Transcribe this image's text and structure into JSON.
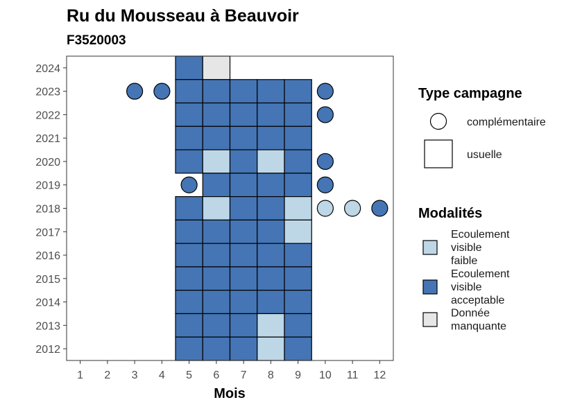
{
  "chart_data": {
    "type": "heatmap",
    "title": "Ru du Mousseau à Beauvoir",
    "subtitle": "F3520003",
    "xlabel": "Mois",
    "ylabel": "",
    "x_ticks": [
      "1",
      "2",
      "3",
      "4",
      "5",
      "6",
      "7",
      "8",
      "9",
      "10",
      "11",
      "12"
    ],
    "y_ticks": [
      "2012",
      "2013",
      "2014",
      "2015",
      "2016",
      "2017",
      "2018",
      "2019",
      "2020",
      "2021",
      "2022",
      "2023",
      "2024"
    ],
    "xlim": [
      0.5,
      12.5
    ],
    "ylim": [
      2011.5,
      2024.5
    ],
    "grid": false,
    "colors": {
      "faible": "#bdd7e7",
      "acceptable": "#4575b4",
      "manquante": "#e6e6e6"
    },
    "legend": {
      "type_title": "Type campagne",
      "type_items": [
        {
          "key": "complementaire",
          "label": "complémentaire",
          "shape": "circle"
        },
        {
          "key": "usuelle",
          "label": "usuelle",
          "shape": "square"
        }
      ],
      "mod_title": "Modalités",
      "mod_items": [
        {
          "key": "faible",
          "lines": [
            "Ecoulement",
            "visible",
            "faible"
          ]
        },
        {
          "key": "acceptable",
          "lines": [
            "Ecoulement",
            "visible",
            "acceptable"
          ]
        },
        {
          "key": "manquante",
          "lines": [
            "Donnée",
            "manquante"
          ]
        }
      ],
      "placement": "right"
    },
    "usuelle": [
      {
        "year": 2024,
        "month": 5,
        "modalite": "acceptable"
      },
      {
        "year": 2024,
        "month": 6,
        "modalite": "manquante"
      },
      {
        "year": 2023,
        "month": 5,
        "modalite": "acceptable"
      },
      {
        "year": 2023,
        "month": 6,
        "modalite": "acceptable"
      },
      {
        "year": 2023,
        "month": 7,
        "modalite": "acceptable"
      },
      {
        "year": 2023,
        "month": 8,
        "modalite": "acceptable"
      },
      {
        "year": 2023,
        "month": 9,
        "modalite": "acceptable"
      },
      {
        "year": 2022,
        "month": 5,
        "modalite": "acceptable"
      },
      {
        "year": 2022,
        "month": 6,
        "modalite": "acceptable"
      },
      {
        "year": 2022,
        "month": 7,
        "modalite": "acceptable"
      },
      {
        "year": 2022,
        "month": 8,
        "modalite": "acceptable"
      },
      {
        "year": 2022,
        "month": 9,
        "modalite": "acceptable"
      },
      {
        "year": 2021,
        "month": 5,
        "modalite": "acceptable"
      },
      {
        "year": 2021,
        "month": 6,
        "modalite": "acceptable"
      },
      {
        "year": 2021,
        "month": 7,
        "modalite": "acceptable"
      },
      {
        "year": 2021,
        "month": 8,
        "modalite": "acceptable"
      },
      {
        "year": 2021,
        "month": 9,
        "modalite": "acceptable"
      },
      {
        "year": 2020,
        "month": 5,
        "modalite": "acceptable"
      },
      {
        "year": 2020,
        "month": 6,
        "modalite": "faible"
      },
      {
        "year": 2020,
        "month": 7,
        "modalite": "acceptable"
      },
      {
        "year": 2020,
        "month": 8,
        "modalite": "faible"
      },
      {
        "year": 2020,
        "month": 9,
        "modalite": "acceptable"
      },
      {
        "year": 2019,
        "month": 6,
        "modalite": "acceptable"
      },
      {
        "year": 2019,
        "month": 7,
        "modalite": "acceptable"
      },
      {
        "year": 2019,
        "month": 8,
        "modalite": "acceptable"
      },
      {
        "year": 2019,
        "month": 9,
        "modalite": "acceptable"
      },
      {
        "year": 2018,
        "month": 5,
        "modalite": "acceptable"
      },
      {
        "year": 2018,
        "month": 6,
        "modalite": "faible"
      },
      {
        "year": 2018,
        "month": 7,
        "modalite": "acceptable"
      },
      {
        "year": 2018,
        "month": 8,
        "modalite": "acceptable"
      },
      {
        "year": 2018,
        "month": 9,
        "modalite": "faible"
      },
      {
        "year": 2017,
        "month": 5,
        "modalite": "acceptable"
      },
      {
        "year": 2017,
        "month": 6,
        "modalite": "acceptable"
      },
      {
        "year": 2017,
        "month": 7,
        "modalite": "acceptable"
      },
      {
        "year": 2017,
        "month": 8,
        "modalite": "acceptable"
      },
      {
        "year": 2017,
        "month": 9,
        "modalite": "faible"
      },
      {
        "year": 2016,
        "month": 5,
        "modalite": "acceptable"
      },
      {
        "year": 2016,
        "month": 6,
        "modalite": "acceptable"
      },
      {
        "year": 2016,
        "month": 7,
        "modalite": "acceptable"
      },
      {
        "year": 2016,
        "month": 8,
        "modalite": "acceptable"
      },
      {
        "year": 2016,
        "month": 9,
        "modalite": "acceptable"
      },
      {
        "year": 2015,
        "month": 5,
        "modalite": "acceptable"
      },
      {
        "year": 2015,
        "month": 6,
        "modalite": "acceptable"
      },
      {
        "year": 2015,
        "month": 7,
        "modalite": "acceptable"
      },
      {
        "year": 2015,
        "month": 8,
        "modalite": "acceptable"
      },
      {
        "year": 2015,
        "month": 9,
        "modalite": "acceptable"
      },
      {
        "year": 2014,
        "month": 5,
        "modalite": "acceptable"
      },
      {
        "year": 2014,
        "month": 6,
        "modalite": "acceptable"
      },
      {
        "year": 2014,
        "month": 7,
        "modalite": "acceptable"
      },
      {
        "year": 2014,
        "month": 8,
        "modalite": "acceptable"
      },
      {
        "year": 2014,
        "month": 9,
        "modalite": "acceptable"
      },
      {
        "year": 2013,
        "month": 5,
        "modalite": "acceptable"
      },
      {
        "year": 2013,
        "month": 6,
        "modalite": "acceptable"
      },
      {
        "year": 2013,
        "month": 7,
        "modalite": "acceptable"
      },
      {
        "year": 2013,
        "month": 8,
        "modalite": "faible"
      },
      {
        "year": 2013,
        "month": 9,
        "modalite": "acceptable"
      },
      {
        "year": 2012,
        "month": 5,
        "modalite": "acceptable"
      },
      {
        "year": 2012,
        "month": 6,
        "modalite": "acceptable"
      },
      {
        "year": 2012,
        "month": 7,
        "modalite": "acceptable"
      },
      {
        "year": 2012,
        "month": 8,
        "modalite": "faible"
      },
      {
        "year": 2012,
        "month": 9,
        "modalite": "acceptable"
      }
    ],
    "complementaire": [
      {
        "year": 2023,
        "month": 3,
        "modalite": "acceptable"
      },
      {
        "year": 2023,
        "month": 4,
        "modalite": "acceptable"
      },
      {
        "year": 2023,
        "month": 10,
        "modalite": "acceptable"
      },
      {
        "year": 2022,
        "month": 10,
        "modalite": "acceptable"
      },
      {
        "year": 2020,
        "month": 10,
        "modalite": "acceptable"
      },
      {
        "year": 2019,
        "month": 5,
        "modalite": "acceptable"
      },
      {
        "year": 2019,
        "month": 10,
        "modalite": "acceptable"
      },
      {
        "year": 2018,
        "month": 10,
        "modalite": "faible"
      },
      {
        "year": 2018,
        "month": 11,
        "modalite": "faible"
      },
      {
        "year": 2018,
        "month": 12,
        "modalite": "acceptable"
      }
    ]
  }
}
